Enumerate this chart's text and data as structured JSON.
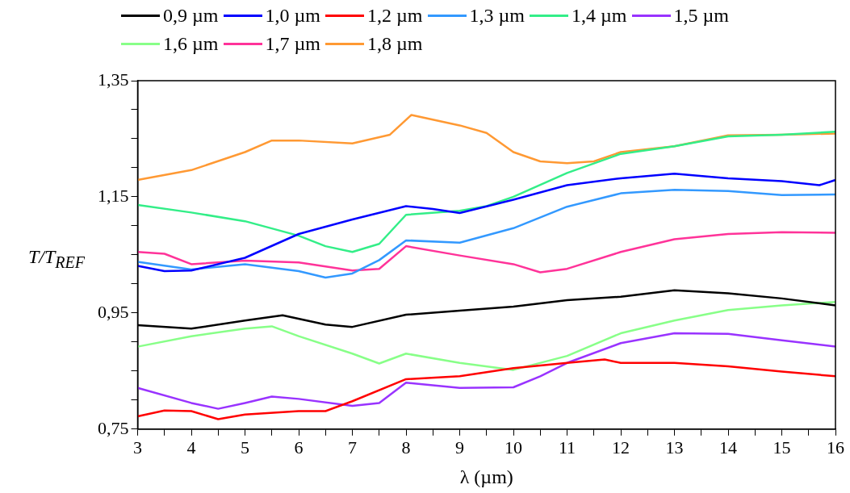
{
  "chart_data": {
    "type": "line",
    "xlabel": "λ (µm)",
    "ylabel": "T/T$_{REF}$",
    "legend": "top",
    "grid": false,
    "marker": "none",
    "line_style": "solid",
    "xlim": [
      3,
      16
    ],
    "ylim": [
      0.75,
      1.35
    ],
    "xticks": [
      3,
      {
        "value": 3.5,
        "label": null
      },
      4,
      {
        "value": 4.5,
        "label": null
      },
      5,
      {
        "value": 5.5,
        "label": null
      },
      6,
      {
        "value": 6.5,
        "label": null
      },
      7,
      {
        "value": 7.5,
        "label": null
      },
      8,
      {
        "value": 8.5,
        "label": null
      },
      9,
      {
        "value": 9.5,
        "label": null
      },
      10,
      {
        "value": 10.5,
        "label": null
      },
      11,
      {
        "value": 11.5,
        "label": null
      },
      12,
      {
        "value": 12.5,
        "label": null
      },
      13,
      {
        "value": 13.5,
        "label": null
      },
      14,
      {
        "value": 14.5,
        "label": null
      },
      15,
      {
        "value": 15.5,
        "label": null
      },
      16
    ],
    "yticks": [
      {
        "value": 0.75,
        "label": "0,75"
      },
      {
        "value": 0.8,
        "label": null
      },
      {
        "value": 0.85,
        "label": null
      },
      {
        "value": 0.9,
        "label": null
      },
      {
        "value": 0.95,
        "label": "0,95"
      },
      {
        "value": 1.0,
        "label": null
      },
      {
        "value": 1.05,
        "label": null
      },
      {
        "value": 1.1,
        "label": null
      },
      {
        "value": 1.15,
        "label": "1,15"
      },
      {
        "value": 1.2,
        "label": null
      },
      {
        "value": 1.25,
        "label": null
      },
      {
        "value": 1.3,
        "label": null
      },
      {
        "value": 1.35,
        "label": "1,35"
      }
    ],
    "series": [
      {
        "name": "0,9 µm",
        "color": "#000000",
        "x": [
          3,
          4,
          5,
          5.7,
          6.5,
          7,
          8,
          9,
          10,
          11,
          12,
          13,
          14,
          15,
          16
        ],
        "values": [
          0.929,
          0.923,
          0.937,
          0.946,
          0.93,
          0.926,
          0.947,
          0.954,
          0.961,
          0.972,
          0.978,
          0.989,
          0.984,
          0.975,
          0.963
        ]
      },
      {
        "name": "1,0 µm",
        "color": "#0000ff",
        "x": [
          3,
          3.5,
          4,
          5,
          6,
          7,
          8,
          8.5,
          9,
          10,
          11,
          12,
          13,
          14,
          15,
          15.7,
          16
        ],
        "values": [
          1.031,
          1.022,
          1.023,
          1.045,
          1.086,
          1.111,
          1.134,
          1.129,
          1.122,
          1.145,
          1.17,
          1.182,
          1.19,
          1.182,
          1.177,
          1.17,
          1.179
        ]
      },
      {
        "name": "1,2 µm",
        "color": "#ff0000",
        "x": [
          3,
          3.5,
          4,
          4.5,
          5,
          6,
          6.5,
          7,
          8,
          9,
          10,
          11,
          11.7,
          12,
          13,
          14,
          15,
          16
        ],
        "values": [
          0.772,
          0.782,
          0.781,
          0.767,
          0.775,
          0.781,
          0.781,
          0.798,
          0.836,
          0.841,
          0.855,
          0.864,
          0.87,
          0.864,
          0.864,
          0.858,
          0.849,
          0.841
        ]
      },
      {
        "name": "1,3 µm",
        "color": "#3399ff",
        "x": [
          3,
          4,
          5,
          6,
          6.5,
          7,
          7.5,
          8,
          9,
          10,
          11,
          12,
          13,
          14,
          15,
          16
        ],
        "values": [
          1.038,
          1.025,
          1.034,
          1.022,
          1.011,
          1.018,
          1.041,
          1.075,
          1.071,
          1.096,
          1.133,
          1.156,
          1.162,
          1.16,
          1.153,
          1.154
        ]
      },
      {
        "name": "1,4 µm",
        "color": "#33ee88",
        "x": [
          3,
          4,
          5,
          6,
          6.5,
          7,
          7.5,
          8,
          9,
          9.5,
          10,
          11,
          12,
          13,
          14,
          15,
          16
        ],
        "values": [
          1.136,
          1.123,
          1.108,
          1.083,
          1.065,
          1.055,
          1.069,
          1.119,
          1.126,
          1.134,
          1.15,
          1.191,
          1.224,
          1.237,
          1.254,
          1.257,
          1.262
        ]
      },
      {
        "name": "1,5 µm",
        "color": "#9933ff",
        "x": [
          3,
          4,
          4.5,
          5,
          5.5,
          6,
          7,
          7.5,
          8,
          9,
          10,
          10.5,
          11,
          12,
          13,
          14,
          15,
          16
        ],
        "values": [
          0.821,
          0.795,
          0.785,
          0.795,
          0.806,
          0.802,
          0.79,
          0.795,
          0.83,
          0.821,
          0.822,
          0.841,
          0.864,
          0.898,
          0.915,
          0.914,
          0.903,
          0.892
        ]
      },
      {
        "name": "1,6 µm",
        "color": "#88ff88",
        "x": [
          3,
          4,
          5,
          5.5,
          6,
          7,
          7.5,
          8,
          9,
          10,
          11,
          12,
          13,
          14,
          15,
          16
        ],
        "values": [
          0.892,
          0.91,
          0.923,
          0.927,
          0.91,
          0.88,
          0.863,
          0.88,
          0.864,
          0.852,
          0.876,
          0.915,
          0.937,
          0.955,
          0.963,
          0.969
        ]
      },
      {
        "name": "1,7 µm",
        "color": "#ff3399",
        "x": [
          3,
          3.5,
          4,
          5,
          6,
          7,
          7.5,
          8,
          9,
          10,
          10.5,
          11,
          12,
          13,
          14,
          15,
          16
        ],
        "values": [
          1.055,
          1.052,
          1.034,
          1.04,
          1.037,
          1.023,
          1.026,
          1.065,
          1.049,
          1.034,
          1.02,
          1.026,
          1.055,
          1.077,
          1.086,
          1.089,
          1.088
        ]
      },
      {
        "name": "1,8 µm",
        "color": "#ff9933",
        "x": [
          3,
          4,
          5,
          5.5,
          6,
          7,
          7.7,
          8.1,
          9,
          9.5,
          10,
          10.5,
          11,
          11.5,
          12,
          13,
          14,
          15,
          16
        ],
        "values": [
          1.179,
          1.196,
          1.227,
          1.247,
          1.247,
          1.242,
          1.257,
          1.291,
          1.273,
          1.26,
          1.227,
          1.211,
          1.208,
          1.211,
          1.227,
          1.237,
          1.256,
          1.257,
          1.259
        ]
      }
    ]
  }
}
